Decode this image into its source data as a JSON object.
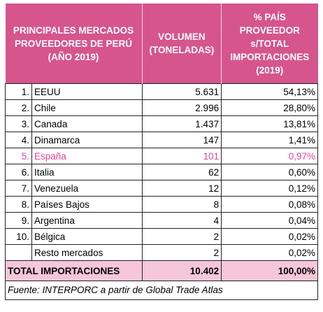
{
  "table": {
    "header": [
      [
        "PRINCIPALES MERCADOS",
        "PROVEEDORES DE PERÚ",
        "(AÑO 2019)"
      ],
      [
        "VOLUMEN",
        "(TONELADAS)"
      ],
      [
        "% PAÍS",
        "PROVEEDOR",
        "s/TOTAL",
        "IMPORTACIONES",
        "(2019)"
      ]
    ],
    "rows": [
      {
        "rank": "1.",
        "name": "EEUU",
        "volume": "5.631",
        "share": "54,13%"
      },
      {
        "rank": "2.",
        "name": "Chile",
        "volume": "2.996",
        "share": "28,80%"
      },
      {
        "rank": "3.",
        "name": "Canada",
        "volume": "1.437",
        "share": "13,81%"
      },
      {
        "rank": "4.",
        "name": "Dinamarca",
        "volume": "147",
        "share": "1,41%"
      },
      {
        "rank": "5.",
        "name": "España",
        "volume": "101",
        "share": "0,97%"
      },
      {
        "rank": "6.",
        "name": "Italia",
        "volume": "62",
        "share": "0,60%"
      },
      {
        "rank": "7.",
        "name": "Venezuela",
        "volume": "12",
        "share": "0,12%"
      },
      {
        "rank": "8.",
        "name": "Países Bajos",
        "volume": "8",
        "share": "0,08%"
      },
      {
        "rank": "9.",
        "name": "Argentina",
        "volume": "4",
        "share": "0,04%"
      },
      {
        "rank": "10.",
        "name": "Bélgica",
        "volume": "2",
        "share": "0,02%"
      },
      {
        "name": "Resto mercados",
        "volume": "2",
        "share": "0,02%"
      }
    ],
    "total": {
      "name": "TOTAL IMPORTACIONES",
      "volume": "10.402",
      "share": "100,00%"
    },
    "source": "Fuente: INTERPORC a partir de Global Trade Atlas"
  }
}
